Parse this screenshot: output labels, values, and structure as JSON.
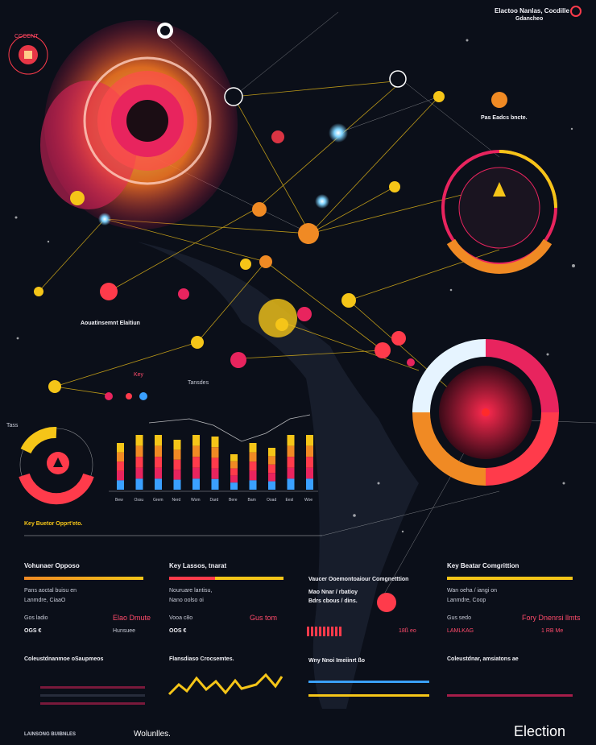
{
  "top_right": {
    "title": "Elactoo Nanlas, Cocdille",
    "subtitle": "Gdancheo",
    "caption": "Pas Eadcs bncte."
  },
  "labels": {
    "top_left_badge": "CCCCNT",
    "map_label_1": "Tass",
    "map_label_2": "Key",
    "map_label_3": "Tansdes",
    "bar_chart_title": "Key Buetor Opprt'eto.",
    "mid_block_title": "Aouatinsemnt Elaitiun"
  },
  "sections": [
    {
      "title": "Vohunaer Opposo",
      "line1": "Pans aoctal buisu en",
      "line2": "Lanmdre, CiaaO",
      "metric": "Gos ladio",
      "metric_r": "Elao Dmute",
      "value": "OGS €",
      "value2": "Hunsuee",
      "footer": "Coleustdnanmoe oSaupmeos"
    },
    {
      "title": "Key Lassos, tnarat",
      "line1": "Nouruare lantisu,",
      "line2": "Nano oolso oi",
      "metric": "Vooa c8o",
      "metric_r": "Gus tom",
      "value": "OOS €",
      "value2": "",
      "footer": "Flansdiaso Crocsemtes."
    },
    {
      "title": "Vaucer Ooemontoaiour Comgnetttion",
      "line1": "Mao Nnar / rbatioy",
      "line2": "Bdrs cbous / dins.",
      "metric": "",
      "metric_r": "",
      "value": "18ß eo",
      "value2": "",
      "footer": "Wny Nnoi Imeiinrt ßo"
    },
    {
      "title": "Key Beatar Comgrittion",
      "line1": "Wan oeha / iangi on",
      "line2": "Lanmdre, Coop",
      "metric": "Gus sedo",
      "metric_r": "Fory Dnenrsi llmts",
      "value": "LAMLKAG",
      "value2": "1 RB Me",
      "footer": "Coleustdnar, amsiatons ae"
    }
  ],
  "footer": {
    "left": "LAINSONG BUIBNLES",
    "volume": "Wolunlles.",
    "brand": "Election"
  },
  "chart_data": {
    "type": "bar",
    "categories": [
      "Bew",
      "Ossu",
      "Grem",
      "Nerd",
      "Wom",
      "Dard",
      "Bere",
      "Bam",
      "Ooad",
      "Eesl",
      "Woe"
    ],
    "series": [
      {
        "values": [
          58,
          68,
          68,
          62,
          68,
          66,
          44,
          58,
          52,
          68,
          68
        ]
      }
    ],
    "title": "",
    "xlabel": "",
    "ylabel": "",
    "ylim": [
      0,
      80
    ]
  },
  "colors": {
    "yellow": "#f5c518",
    "orange": "#f08a24",
    "red": "#ff3b4b",
    "pink": "#e8245e",
    "blue": "#3aa0ff",
    "cyan": "#7fd4ff",
    "bg": "#0b0f19"
  }
}
